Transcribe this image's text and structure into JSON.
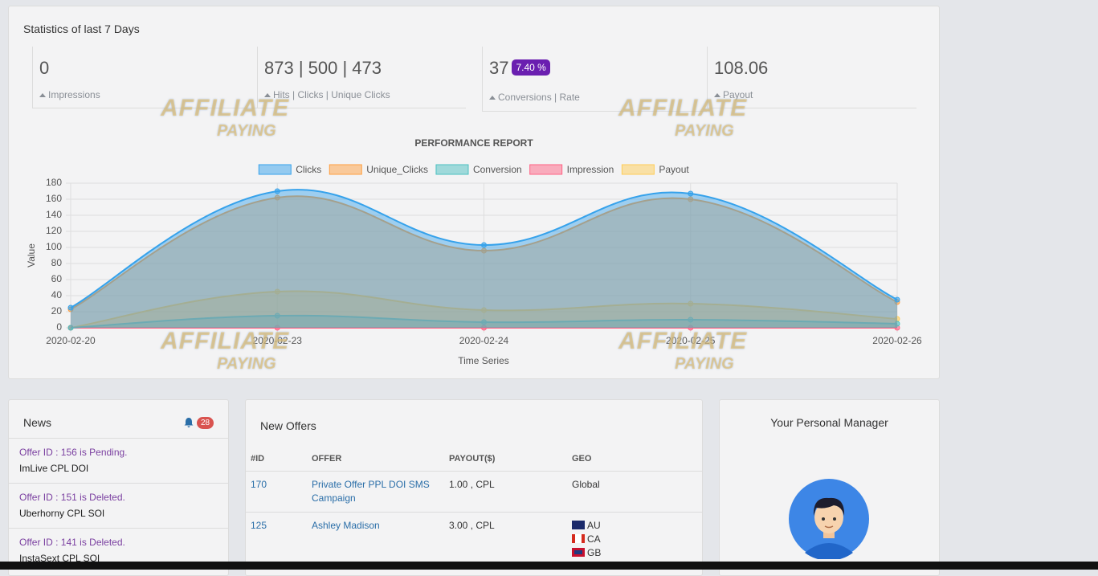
{
  "header": {
    "title": "Statistics of last 7 Days"
  },
  "stats": [
    {
      "value": "0",
      "label": "Impressions"
    },
    {
      "value": "873 | 500 | 473",
      "label": "Hits | Clicks | Unique Clicks"
    },
    {
      "value": "37",
      "badge": "7.40 %",
      "label": "Conversions | Rate"
    },
    {
      "value": "108.06",
      "label": "Payout"
    }
  ],
  "chart_data": {
    "type": "area",
    "title": "PERFORMANCE REPORT",
    "x_label": "Time Series",
    "y_label": "Value",
    "x": [
      "2020-02-20",
      "2020-02-23",
      "2020-02-24",
      "2020-02-25",
      "2020-02-26"
    ],
    "series": [
      {
        "name": "Clicks",
        "color": "#36a2eb",
        "values": [
          25,
          170,
          103,
          167,
          35
        ]
      },
      {
        "name": "Unique_Clicks",
        "color": "#ff9f40",
        "values": [
          23,
          162,
          96,
          160,
          32
        ]
      },
      {
        "name": "Conversion",
        "color": "#4bc0c0",
        "values": [
          0,
          15,
          7,
          10,
          5
        ]
      },
      {
        "name": "Impression",
        "color": "#ff6384",
        "values": [
          0,
          0,
          0,
          0,
          0
        ]
      },
      {
        "name": "Payout",
        "color": "#ffcd56",
        "values": [
          0,
          45,
          22,
          30,
          11
        ]
      }
    ],
    "ylim": [
      0,
      180
    ],
    "yticks": [
      0,
      20,
      40,
      60,
      80,
      100,
      120,
      140,
      160,
      180
    ],
    "grid": true,
    "legend": "top"
  },
  "news": {
    "title": "News",
    "count": "28",
    "items": [
      {
        "status": "Offer ID : 156 is Pending.",
        "name": "ImLive CPL DOI"
      },
      {
        "status": "Offer ID : 151 is Deleted.",
        "name": "Uberhorny CPL SOI"
      },
      {
        "status": "Offer ID : 141 is Deleted.",
        "name": "InstaSext CPL SOI"
      }
    ]
  },
  "offers": {
    "title": "New Offers",
    "columns": [
      "#ID",
      "OFFER",
      "PAYOUT($)",
      "GEO"
    ],
    "rows": [
      {
        "id": "170",
        "offer": "Private Offer PPL DOI SMS Campaign",
        "payout": "1.00 , CPL",
        "geo": [
          "Global"
        ]
      },
      {
        "id": "125",
        "offer": "Ashley Madison",
        "payout": "3.00 , CPL",
        "geo": [
          "AU",
          "CA",
          "GB"
        ]
      }
    ]
  },
  "manager": {
    "title": "Your Personal Manager"
  },
  "watermark": {
    "line1": "AFFILIATE",
    "line2": "PAYING"
  }
}
